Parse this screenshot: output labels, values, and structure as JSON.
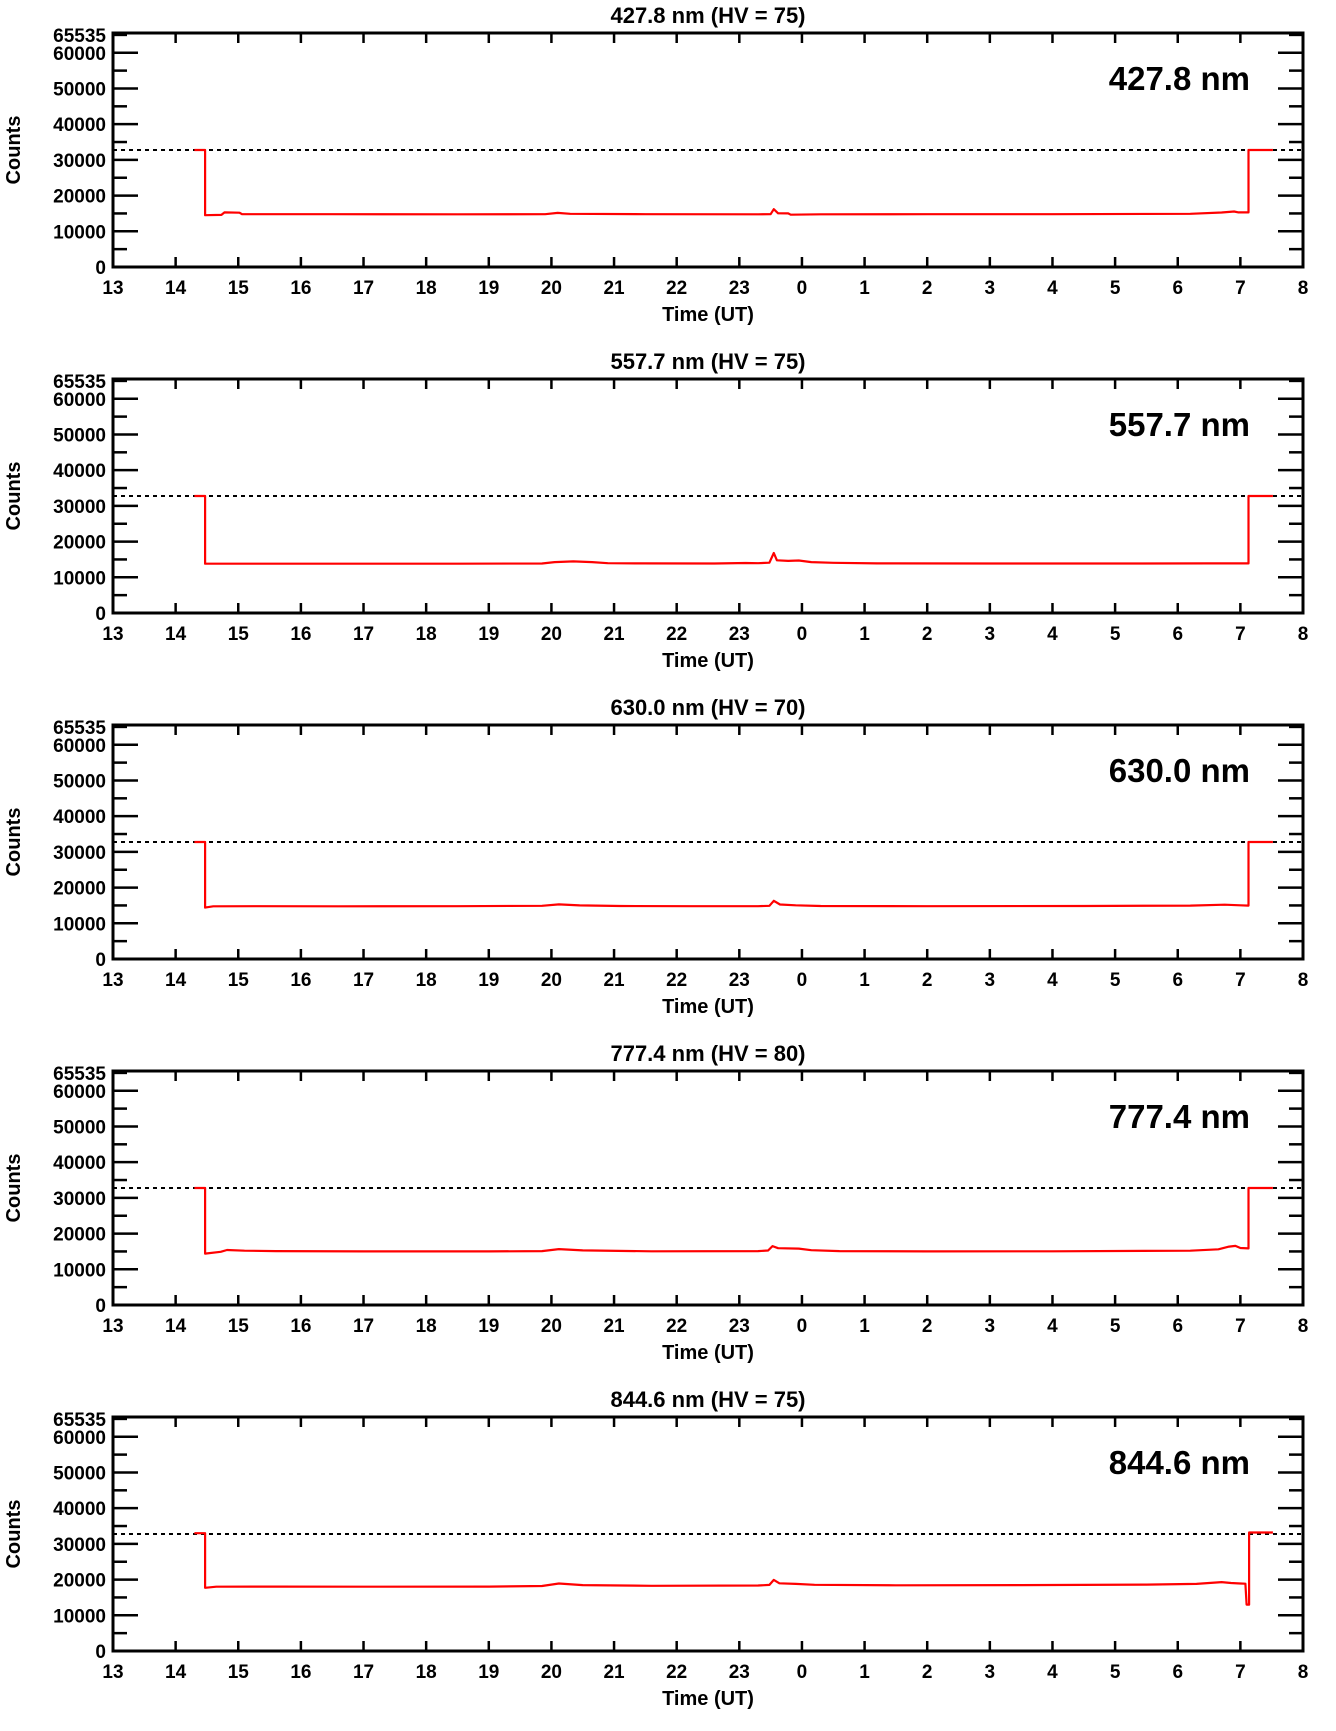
{
  "figure": {
    "x_axis_label": "Time (UT)",
    "y_axis_label": "Counts",
    "line_color": "#ff0000",
    "axis_color": "#000000",
    "threshold_style": "dashed"
  },
  "chart_data": [
    {
      "type": "line",
      "title": "427.8 nm (HV = 75)",
      "inplot_label": "427.8 nm",
      "wavelength_nm": 427.8,
      "hv": 75,
      "xlabel": "Time (UT)",
      "ylabel": "Counts",
      "x_tick_labels": [
        "13",
        "14",
        "15",
        "16",
        "17",
        "18",
        "19",
        "20",
        "21",
        "22",
        "23",
        "0",
        "1",
        "2",
        "3",
        "4",
        "5",
        "6",
        "7",
        "8"
      ],
      "x_range_hours": [
        0,
        19
      ],
      "ylim": [
        0,
        65535
      ],
      "y_major_ticks": [
        0,
        10000,
        20000,
        30000,
        40000,
        50000,
        60000
      ],
      "y_minor_step": 5000,
      "y_top_label": "65535",
      "threshold": 32767,
      "line_color": "#ff0000",
      "series": [
        {
          "name": "counts",
          "points": [
            [
              1.3,
              32767
            ],
            [
              1.47,
              32767
            ],
            [
              1.47,
              14500
            ],
            [
              1.73,
              14600
            ],
            [
              1.78,
              15300
            ],
            [
              2.02,
              15200
            ],
            [
              2.06,
              14800
            ],
            [
              3.5,
              14800
            ],
            [
              5.5,
              14750
            ],
            [
              6.9,
              14800
            ],
            [
              7.1,
              15150
            ],
            [
              7.3,
              14900
            ],
            [
              8.5,
              14800
            ],
            [
              10.3,
              14750
            ],
            [
              10.5,
              14800
            ],
            [
              10.55,
              16200
            ],
            [
              10.62,
              15050
            ],
            [
              10.78,
              15000
            ],
            [
              10.82,
              14650
            ],
            [
              11.3,
              14750
            ],
            [
              13.0,
              14800
            ],
            [
              15.0,
              14800
            ],
            [
              17.2,
              14900
            ],
            [
              17.7,
              15250
            ],
            [
              17.9,
              15550
            ],
            [
              17.97,
              15300
            ],
            [
              18.13,
              15300
            ],
            [
              18.13,
              32767
            ],
            [
              18.52,
              32767
            ]
          ]
        }
      ]
    },
    {
      "type": "line",
      "title": "557.7 nm (HV = 75)",
      "inplot_label": "557.7 nm",
      "wavelength_nm": 557.7,
      "hv": 75,
      "xlabel": "Time (UT)",
      "ylabel": "Counts",
      "x_tick_labels": [
        "13",
        "14",
        "15",
        "16",
        "17",
        "18",
        "19",
        "20",
        "21",
        "22",
        "23",
        "0",
        "1",
        "2",
        "3",
        "4",
        "5",
        "6",
        "7",
        "8"
      ],
      "x_range_hours": [
        0,
        19
      ],
      "ylim": [
        0,
        65535
      ],
      "y_major_ticks": [
        0,
        10000,
        20000,
        30000,
        40000,
        50000,
        60000
      ],
      "y_minor_step": 5000,
      "y_top_label": "65535",
      "threshold": 32767,
      "line_color": "#ff0000",
      "series": [
        {
          "name": "counts",
          "points": [
            [
              1.3,
              32767
            ],
            [
              1.47,
              32767
            ],
            [
              1.47,
              13800
            ],
            [
              3.0,
              13800
            ],
            [
              5.5,
              13800
            ],
            [
              6.85,
              13850
            ],
            [
              7.05,
              14250
            ],
            [
              7.35,
              14450
            ],
            [
              7.65,
              14250
            ],
            [
              7.9,
              13950
            ],
            [
              8.4,
              13900
            ],
            [
              9.6,
              13850
            ],
            [
              10.1,
              14000
            ],
            [
              10.3,
              13950
            ],
            [
              10.48,
              14100
            ],
            [
              10.55,
              16800
            ],
            [
              10.6,
              14750
            ],
            [
              10.78,
              14600
            ],
            [
              10.95,
              14700
            ],
            [
              11.15,
              14250
            ],
            [
              11.5,
              14050
            ],
            [
              12.2,
              13900
            ],
            [
              14.0,
              13850
            ],
            [
              16.0,
              13850
            ],
            [
              17.5,
              13900
            ],
            [
              18.13,
              13900
            ],
            [
              18.13,
              32767
            ],
            [
              18.52,
              32767
            ]
          ]
        }
      ]
    },
    {
      "type": "line",
      "title": "630.0 nm (HV = 70)",
      "inplot_label": "630.0 nm",
      "wavelength_nm": 630.0,
      "hv": 70,
      "xlabel": "Time (UT)",
      "ylabel": "Counts",
      "x_tick_labels": [
        "13",
        "14",
        "15",
        "16",
        "17",
        "18",
        "19",
        "20",
        "21",
        "22",
        "23",
        "0",
        "1",
        "2",
        "3",
        "4",
        "5",
        "6",
        "7",
        "8"
      ],
      "x_range_hours": [
        0,
        19
      ],
      "ylim": [
        0,
        65535
      ],
      "y_major_ticks": [
        0,
        10000,
        20000,
        30000,
        40000,
        50000,
        60000
      ],
      "y_minor_step": 5000,
      "y_top_label": "65535",
      "threshold": 32767,
      "line_color": "#ff0000",
      "series": [
        {
          "name": "counts",
          "points": [
            [
              1.3,
              32767
            ],
            [
              1.47,
              32767
            ],
            [
              1.47,
              14400
            ],
            [
              1.6,
              14750
            ],
            [
              2.3,
              14800
            ],
            [
              3.6,
              14750
            ],
            [
              5.5,
              14800
            ],
            [
              6.85,
              14900
            ],
            [
              7.12,
              15300
            ],
            [
              7.45,
              15000
            ],
            [
              8.1,
              14850
            ],
            [
              9.2,
              14800
            ],
            [
              10.3,
              14800
            ],
            [
              10.48,
              14900
            ],
            [
              10.55,
              16300
            ],
            [
              10.65,
              15250
            ],
            [
              10.9,
              15050
            ],
            [
              11.3,
              14850
            ],
            [
              13.0,
              14800
            ],
            [
              15.5,
              14850
            ],
            [
              17.2,
              14950
            ],
            [
              17.75,
              15200
            ],
            [
              18.0,
              15050
            ],
            [
              18.13,
              14950
            ],
            [
              18.13,
              32767
            ],
            [
              18.52,
              32767
            ]
          ]
        }
      ]
    },
    {
      "type": "line",
      "title": "777.4 nm (HV = 80)",
      "inplot_label": "777.4 nm",
      "wavelength_nm": 777.4,
      "hv": 80,
      "xlabel": "Time (UT)",
      "ylabel": "Counts",
      "x_tick_labels": [
        "13",
        "14",
        "15",
        "16",
        "17",
        "18",
        "19",
        "20",
        "21",
        "22",
        "23",
        "0",
        "1",
        "2",
        "3",
        "4",
        "5",
        "6",
        "7",
        "8"
      ],
      "x_range_hours": [
        0,
        19
      ],
      "ylim": [
        0,
        65535
      ],
      "y_major_ticks": [
        0,
        10000,
        20000,
        30000,
        40000,
        50000,
        60000
      ],
      "y_minor_step": 5000,
      "y_top_label": "65535",
      "threshold": 32767,
      "line_color": "#ff0000",
      "series": [
        {
          "name": "counts",
          "points": [
            [
              1.3,
              32767
            ],
            [
              1.47,
              32767
            ],
            [
              1.47,
              14400
            ],
            [
              1.72,
              14900
            ],
            [
              1.82,
              15400
            ],
            [
              2.1,
              15200
            ],
            [
              2.6,
              15100
            ],
            [
              4.0,
              15000
            ],
            [
              6.0,
              15000
            ],
            [
              6.85,
              15100
            ],
            [
              7.12,
              15650
            ],
            [
              7.5,
              15300
            ],
            [
              8.6,
              15050
            ],
            [
              10.3,
              15100
            ],
            [
              10.46,
              15250
            ],
            [
              10.53,
              16500
            ],
            [
              10.62,
              15900
            ],
            [
              10.95,
              15800
            ],
            [
              11.15,
              15350
            ],
            [
              11.6,
              15100
            ],
            [
              13.0,
              15000
            ],
            [
              15.0,
              15050
            ],
            [
              17.2,
              15200
            ],
            [
              17.65,
              15600
            ],
            [
              17.82,
              16350
            ],
            [
              17.92,
              16550
            ],
            [
              18.0,
              15950
            ],
            [
              18.13,
              15850
            ],
            [
              18.13,
              32767
            ],
            [
              18.52,
              32767
            ]
          ]
        }
      ]
    },
    {
      "type": "line",
      "title": "844.6 nm (HV = 75)",
      "inplot_label": "844.6 nm",
      "wavelength_nm": 844.6,
      "hv": 75,
      "xlabel": "Time (UT)",
      "ylabel": "Counts",
      "x_tick_labels": [
        "13",
        "14",
        "15",
        "16",
        "17",
        "18",
        "19",
        "20",
        "21",
        "22",
        "23",
        "0",
        "1",
        "2",
        "3",
        "4",
        "5",
        "6",
        "7",
        "8"
      ],
      "x_range_hours": [
        0,
        19
      ],
      "ylim": [
        0,
        65535
      ],
      "y_major_ticks": [
        0,
        10000,
        20000,
        30000,
        40000,
        50000,
        60000
      ],
      "y_minor_step": 5000,
      "y_top_label": "65535",
      "threshold": 32767,
      "line_color": "#ff0000",
      "series": [
        {
          "name": "counts",
          "points": [
            [
              1.3,
              33000
            ],
            [
              1.47,
              33000
            ],
            [
              1.47,
              17700
            ],
            [
              1.65,
              18000
            ],
            [
              2.6,
              18050
            ],
            [
              4.0,
              18000
            ],
            [
              6.0,
              18050
            ],
            [
              6.85,
              18200
            ],
            [
              7.12,
              18900
            ],
            [
              7.5,
              18450
            ],
            [
              8.6,
              18250
            ],
            [
              10.3,
              18350
            ],
            [
              10.48,
              18500
            ],
            [
              10.55,
              19900
            ],
            [
              10.64,
              18950
            ],
            [
              10.9,
              18800
            ],
            [
              11.2,
              18550
            ],
            [
              12.5,
              18400
            ],
            [
              14.5,
              18450
            ],
            [
              16.5,
              18600
            ],
            [
              17.3,
              18800
            ],
            [
              17.7,
              19300
            ],
            [
              17.85,
              19050
            ],
            [
              18.0,
              18900
            ],
            [
              18.08,
              18850
            ],
            [
              18.1,
              13000
            ],
            [
              18.14,
              13000
            ],
            [
              18.14,
              33200
            ],
            [
              18.52,
              33200
            ]
          ]
        }
      ]
    }
  ]
}
